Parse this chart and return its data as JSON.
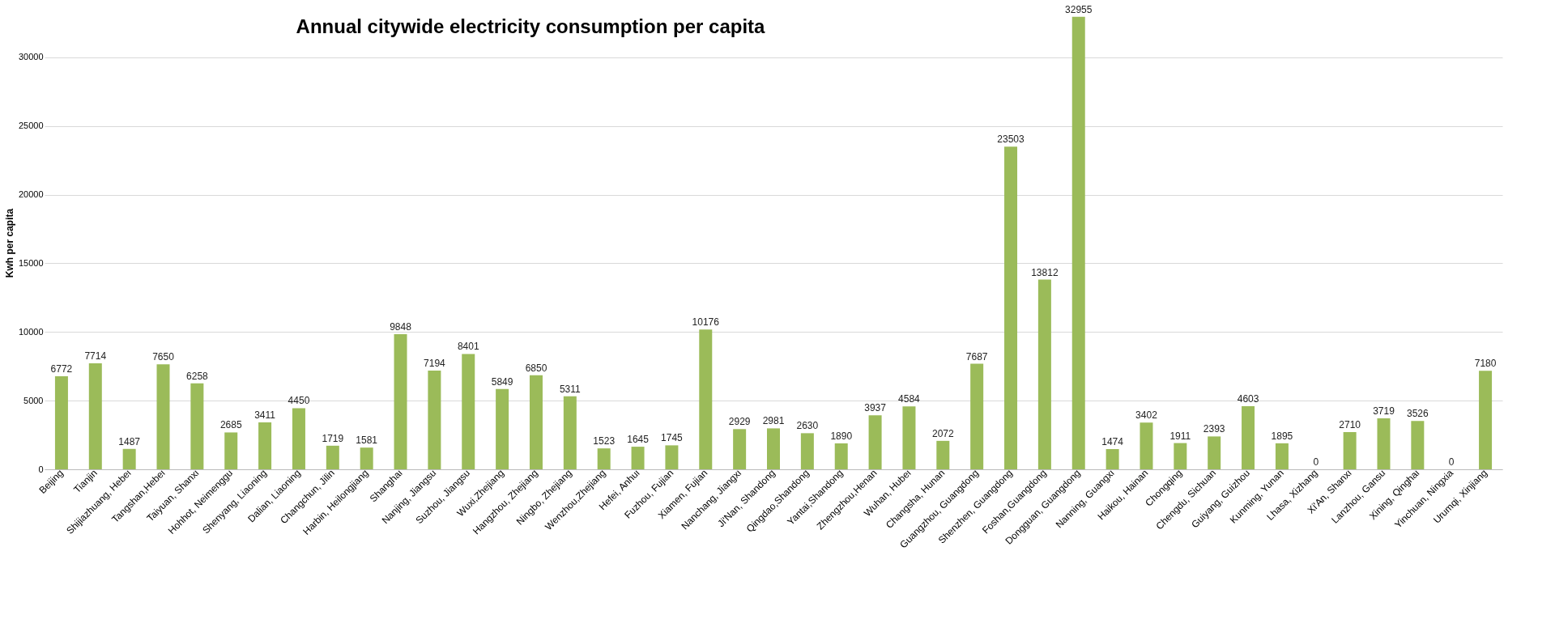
{
  "chart_data": {
    "type": "bar",
    "title": "Annual citywide electricity consumption per capita",
    "ylabel": "Kwh per capita",
    "categories": [
      "Beijing",
      "Tianjin",
      "Shijiazhuang, Hebei",
      "Tangshan,Hebei",
      "Taiyuan, Shanxi",
      "Hohhot, Neimenggu",
      "Shenyang, Liaoning",
      "Dalian, Liaoning",
      "Changchun, Jilin",
      "Harbin, Heilongjiang",
      "Shanghai",
      "Nanjing, Jiangsu",
      "Suzhou, Jiangsu",
      "Wuxi,Zhejiang",
      "Hangzhou, Zhejiang",
      "Ningbo, Zhejiang",
      "Wenzhou,Zhejiang",
      "Hefei, Anhui",
      "Fuzhou, Fujian",
      "Xiamen, Fujian",
      "Nanchang, Jiangxi",
      "Ji'Nan, Shandong",
      "Qingdao,Shandong",
      "Yantai,Shandong",
      "Zhengzhou,Henan",
      "Wuhan, Hubei",
      "Changsha, Hunan",
      "Guangzhou, Guangdong",
      "Shenzhen, Guangdong",
      "Foshan,Guangdong",
      "Dongguan, Guangdong",
      "Nanning, Guangxi",
      "Haikou, Hainan",
      "Chongqing",
      "Chengdu, Sichuan",
      "Guiyang, Guizhou",
      "Kunming, Yunan",
      "Lhasa, Xizhang",
      "Xi'An, Shanxi",
      "Lanzhou, Gansu",
      "Xining, Qinghai",
      "Yinchuan, Ningxia",
      "Urumqi, Xinjiang"
    ],
    "values": [
      6772,
      7714,
      1487,
      7650,
      6258,
      2685,
      3411,
      4450,
      1719,
      1581,
      9848,
      7194,
      8401,
      5849,
      6850,
      5311,
      1523,
      1645,
      1745,
      10176,
      2929,
      2981,
      2630,
      1890,
      3937,
      4584,
      2072,
      7687,
      23503,
      13812,
      32955,
      1474,
      3402,
      1911,
      2393,
      4603,
      1895,
      0,
      2710,
      3719,
      3526,
      0,
      7180
    ],
    "color": "#9bbb59",
    "ylim": [
      0,
      33000
    ],
    "yticks": [
      0,
      5000,
      10000,
      15000,
      20000,
      25000,
      30000
    ],
    "grid": "y",
    "data_labels": true
  }
}
